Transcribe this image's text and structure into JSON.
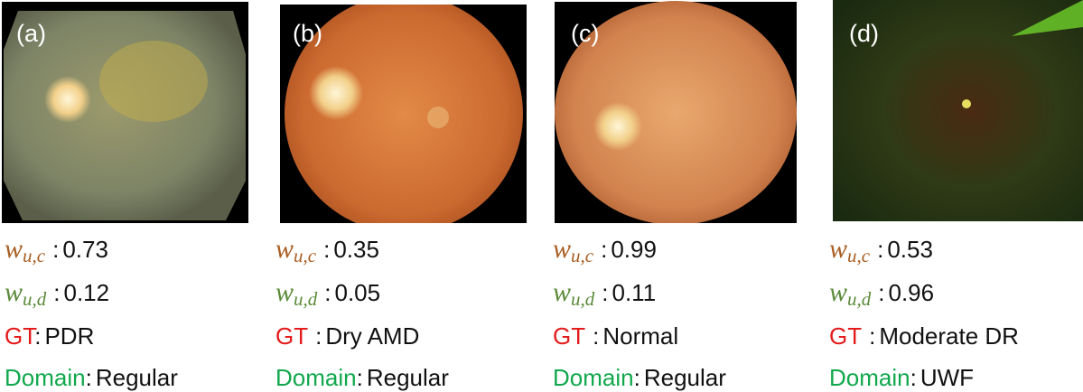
{
  "panels": [
    {
      "label": "(a)",
      "wc": {
        "symbol": "w",
        "sub": "u,c",
        "sep": ":",
        "value": 0.73
      },
      "wd": {
        "symbol": "w",
        "sub": "u,d",
        "sep": ":",
        "value": 0.12
      },
      "gt": {
        "key": "GT",
        "sep": ":",
        "value": "PDR"
      },
      "domain": {
        "key": "Domain",
        "sep": ":",
        "value": "Regular"
      }
    },
    {
      "label": "(b)",
      "wc": {
        "symbol": "w",
        "sub": "u,c",
        "sep": ":",
        "value": 0.35
      },
      "wd": {
        "symbol": "w",
        "sub": "u,d",
        "sep": ":",
        "value": 0.05
      },
      "gt": {
        "key": "GT",
        "sep": ":",
        "value": "Dry AMD"
      },
      "domain": {
        "key": "Domain",
        "sep": ":",
        "value": "Regular"
      }
    },
    {
      "label": "(c)",
      "wc": {
        "symbol": "w",
        "sub": "u,c",
        "sep": ":",
        "value": 0.99
      },
      "wd": {
        "symbol": "w",
        "sub": "u,d",
        "sep": ":",
        "value": 0.11
      },
      "gt": {
        "key": "GT",
        "sep": ":",
        "value": "Normal"
      },
      "domain": {
        "key": "Domain",
        "sep": ":",
        "value": "Regular"
      }
    },
    {
      "label": "(d)",
      "wc": {
        "symbol": "w",
        "sub": "u,c",
        "sep": ":",
        "value": 0.53
      },
      "wd": {
        "symbol": "w",
        "sub": "u,d",
        "sep": ":",
        "value": 0.96
      },
      "gt": {
        "key": "GT",
        "sep": ":",
        "value": "Moderate DR"
      },
      "domain": {
        "key": "Domain",
        "sep": ":",
        "value": "UWF"
      }
    }
  ]
}
